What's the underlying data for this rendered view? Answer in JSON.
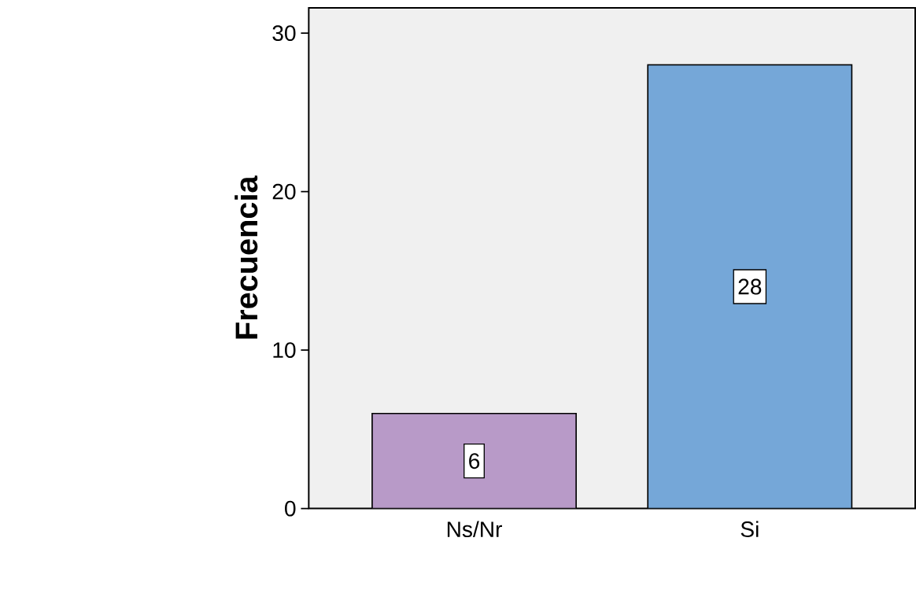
{
  "chart_data": {
    "type": "bar",
    "ylabel": "Frecuencia",
    "categories": [
      "Ns/Nr",
      "Si"
    ],
    "values": [
      6,
      28
    ],
    "colors": [
      "#b89ac8",
      "#75a7d8"
    ],
    "ylim": [
      0,
      31.6
    ],
    "yticks": [
      0,
      10,
      20,
      30
    ],
    "data_labels": true
  }
}
